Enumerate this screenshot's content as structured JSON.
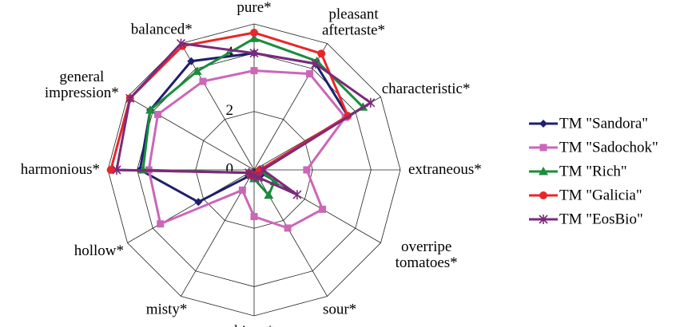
{
  "chart_data": {
    "type": "radar",
    "categories": [
      "pure*",
      "pleasant aftertaste*",
      "characteristic*",
      "extraneous*",
      "overripe tomatoes*",
      "sour*",
      "bitter*",
      "misty*",
      "hollow*",
      "harmonious*",
      "general impression*",
      "balanced*"
    ],
    "ylim": [
      0,
      5
    ],
    "yticks": [
      0,
      2,
      4
    ],
    "grid": true,
    "legend": "right",
    "series": [
      {
        "name": "TM \"Sandora\"",
        "color": "#1f1f6e",
        "marker": "diamond",
        "values": [
          4.0,
          4.2,
          3.7,
          0.2,
          0.3,
          0.2,
          0.3,
          0.2,
          2.2,
          3.9,
          4.1,
          4.3
        ]
      },
      {
        "name": "TM \"Sadochok\"",
        "color": "#cc66b8",
        "marker": "square",
        "values": [
          3.4,
          3.8,
          3.6,
          1.8,
          2.7,
          2.3,
          1.6,
          0.8,
          3.7,
          3.6,
          3.8,
          3.5
        ]
      },
      {
        "name": "TM \"Rich\"",
        "color": "#1a8c3c",
        "marker": "triangle",
        "values": [
          4.5,
          4.3,
          4.3,
          0.2,
          0.8,
          1.0,
          0.3,
          0.2,
          0.2,
          3.8,
          4.1,
          3.9
        ]
      },
      {
        "name": "TM \"Galicia\"",
        "color": "#e8262a",
        "marker": "circle",
        "values": [
          4.7,
          4.6,
          3.7,
          0.2,
          0.2,
          0.2,
          0.2,
          0.2,
          0.2,
          4.9,
          4.9,
          4.9
        ]
      },
      {
        "name": "TM \"EosBio\"",
        "color": "#7b2a7b",
        "marker": "star",
        "values": [
          4.0,
          4.2,
          4.6,
          0.3,
          1.7,
          0.3,
          0.2,
          0.2,
          0.2,
          4.7,
          4.9,
          5.0
        ]
      }
    ]
  }
}
